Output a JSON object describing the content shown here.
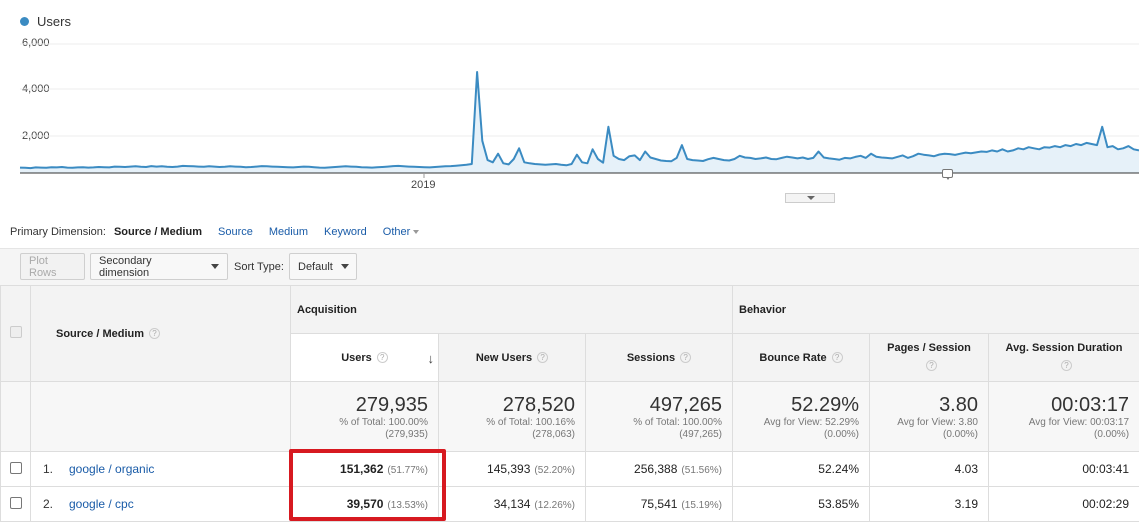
{
  "chart_data": {
    "type": "area",
    "legend": "Users",
    "y_ticks": [
      "6,000",
      "4,000",
      "2,000"
    ],
    "x_ticks": [
      "2019"
    ],
    "ylim": [
      0,
      6000
    ],
    "colors": {
      "line": "#3b8bc2",
      "fill": "#e6f1f9"
    },
    "values": [
      250,
      240,
      230,
      260,
      250,
      240,
      270,
      260,
      280,
      250,
      240,
      260,
      270,
      250,
      260,
      280,
      270,
      260,
      300,
      290,
      280,
      300,
      310,
      290,
      280,
      320,
      300,
      310,
      290,
      280,
      300,
      330,
      320,
      310,
      300,
      290,
      310,
      300,
      280,
      290,
      310,
      300,
      290,
      270,
      280,
      300,
      320,
      310,
      300,
      290,
      280,
      270,
      260,
      280,
      300,
      290,
      270,
      250,
      240,
      260,
      280,
      300,
      310,
      300,
      290,
      270,
      260,
      250,
      270,
      280,
      300,
      320,
      330,
      310,
      300,
      290,
      280,
      270,
      260,
      280,
      300,
      310,
      320,
      340,
      360,
      380,
      420,
      4700,
      1500,
      600,
      500,
      900,
      450,
      400,
      650,
      1150,
      500,
      450,
      420,
      400,
      380,
      400,
      420,
      380,
      360,
      420,
      850,
      500,
      450,
      1100,
      650,
      480,
      2150,
      800,
      650,
      600,
      780,
      820,
      600,
      1000,
      720,
      650,
      580,
      560,
      550,
      700,
      1300,
      650,
      600,
      580,
      560,
      640,
      700,
      650,
      600,
      580,
      650,
      800,
      720,
      700,
      650,
      680,
      720,
      650,
      640,
      700,
      760,
      720,
      680,
      720,
      650,
      700,
      1000,
      720,
      680,
      650,
      620,
      700,
      680,
      750,
      800,
      700,
      900,
      760,
      720,
      700,
      680,
      750,
      820,
      700,
      780,
      900,
      850,
      820,
      780,
      860,
      900,
      880,
      840,
      900,
      950,
      920,
      960,
      1000,
      980,
      1050,
      1000,
      1100,
      1000,
      1050,
      1150,
      1100,
      1200,
      1150,
      1100,
      1200,
      1180,
      1250,
      1200,
      1300,
      1250,
      1350,
      1300,
      1400,
      1350,
      1300,
      2150,
      1200,
      1250,
      1100,
      1150,
      1250,
      1100,
      1050
    ]
  },
  "primary_dimension": {
    "label": "Primary Dimension:",
    "active": "Source / Medium",
    "links": [
      "Source",
      "Medium",
      "Keyword",
      "Other"
    ]
  },
  "toolbar": {
    "plot_rows": "Plot Rows",
    "secondary_dimension": "Secondary dimension",
    "sort_type_label": "Sort Type:",
    "sort_type_value": "Default"
  },
  "table": {
    "dimension_header": "Source / Medium",
    "groups": {
      "acquisition": "Acquisition",
      "behavior": "Behavior"
    },
    "metrics": [
      "Users",
      "New Users",
      "Sessions",
      "Bounce Rate",
      "Pages / Session",
      "Avg. Session Duration"
    ],
    "totals": [
      {
        "value": "279,935",
        "line1": "% of Total: 100.00%",
        "line2": "(279,935)"
      },
      {
        "value": "278,520",
        "line1": "% of Total: 100.16%",
        "line2": "(278,063)"
      },
      {
        "value": "497,265",
        "line1": "% of Total: 100.00%",
        "line2": "(497,265)"
      },
      {
        "value": "52.29%",
        "line1": "Avg for View: 52.29%",
        "line2": "(0.00%)"
      },
      {
        "value": "3.80",
        "line1": "Avg for View: 3.80",
        "line2": "(0.00%)"
      },
      {
        "value": "00:03:17",
        "line1": "Avg for View: 00:03:17",
        "line2": "(0.00%)"
      }
    ],
    "rows": [
      {
        "index": "1.",
        "source": "google / organic",
        "users": "151,362",
        "users_pct": "(51.77%)",
        "new_users": "145,393",
        "new_users_pct": "(52.20%)",
        "sessions": "256,388",
        "sessions_pct": "(51.56%)",
        "bounce_rate": "52.24%",
        "pages_session": "4.03",
        "avg_duration": "00:03:41"
      },
      {
        "index": "2.",
        "source": "google / cpc",
        "users": "39,570",
        "users_pct": "(13.53%)",
        "new_users": "34,134",
        "new_users_pct": "(12.26%)",
        "sessions": "75,541",
        "sessions_pct": "(15.19%)",
        "bounce_rate": "53.85%",
        "pages_session": "3.19",
        "avg_duration": "00:02:29"
      }
    ]
  },
  "highlight_color": "#d71920"
}
